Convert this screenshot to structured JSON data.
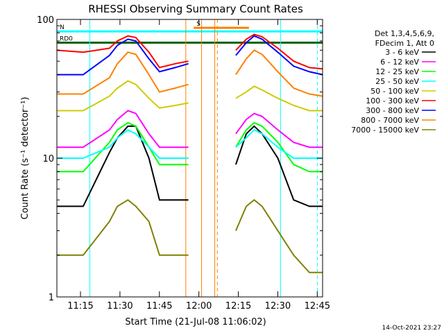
{
  "chart_data": {
    "type": "line",
    "title": "RHESSI Observing Summary Count Rates",
    "xlabel": "Start Time (21-Jul-08 11:06:02)",
    "ylabel": "Count Rate (s⁻¹ detector⁻¹)",
    "y_scale": "log",
    "ylim": [
      1,
      100
    ],
    "x_unit": "minutes since 11:06:02",
    "xlim": [
      0,
      101
    ],
    "x_ticks": [
      {
        "label": "11:15",
        "value": 8.97
      },
      {
        "label": "11:30",
        "value": 23.97
      },
      {
        "label": "11:45",
        "value": 38.97
      },
      {
        "label": "12:00",
        "value": 53.97
      },
      {
        "label": "12:15",
        "value": 68.97
      },
      {
        "label": "12:30",
        "value": 83.97
      },
      {
        "label": "12:45",
        "value": 98.97
      }
    ],
    "y_ticks": [
      {
        "label": "1",
        "value": 1
      },
      {
        "label": "10",
        "value": 10
      },
      {
        "label": "100",
        "value": 100
      }
    ],
    "legend": {
      "placement": "right",
      "header": [
        "Det 1,3,4,5,6,9,",
        "FDecim 1, Att 0"
      ]
    },
    "series": [
      {
        "name": "3 - 6 keV",
        "color": "#000000",
        "x": [
          0,
          10,
          20,
          23,
          27,
          30,
          35,
          39,
          45,
          50,
          55,
          68,
          72,
          75,
          78,
          84,
          90,
          96,
          101
        ],
        "y": [
          4.5,
          4.5,
          11,
          14,
          17,
          17,
          10,
          5,
          5,
          5,
          null,
          9,
          15,
          17,
          15,
          10,
          5,
          4.5,
          4.5
        ]
      },
      {
        "name": "6 - 12 keV",
        "color": "#ff00ff",
        "x": [
          0,
          10,
          20,
          23,
          27,
          30,
          35,
          39,
          45,
          50,
          55,
          68,
          72,
          75,
          78,
          84,
          90,
          96,
          101
        ],
        "y": [
          12,
          12,
          16,
          19,
          22,
          21,
          15,
          12,
          12,
          12,
          null,
          15,
          19,
          21,
          20,
          16,
          13,
          12,
          12
        ]
      },
      {
        "name": "12 - 25 keV",
        "color": "#00ff00",
        "x": [
          0,
          10,
          20,
          23,
          27,
          30,
          35,
          39,
          45,
          50,
          55,
          68,
          72,
          75,
          78,
          84,
          90,
          96,
          101
        ],
        "y": [
          8,
          8,
          13,
          16,
          18,
          17,
          12,
          9,
          9,
          9,
          null,
          12,
          16,
          18,
          17,
          13,
          9,
          8,
          8
        ]
      },
      {
        "name": "25 - 50 keV",
        "color": "#00ffff",
        "x": [
          0,
          10,
          20,
          23,
          27,
          30,
          35,
          39,
          45,
          50,
          55,
          68,
          72,
          75,
          78,
          84,
          90,
          96,
          101
        ],
        "y": [
          10,
          10,
          12,
          14,
          16,
          15,
          12,
          10,
          10,
          10,
          null,
          12,
          14,
          16,
          15,
          12,
          10,
          10,
          10
        ]
      },
      {
        "name": "50 - 100 keV",
        "color": "#cccc00",
        "x": [
          0,
          10,
          20,
          23,
          27,
          30,
          35,
          39,
          45,
          50,
          55,
          68,
          72,
          75,
          78,
          84,
          90,
          96,
          101
        ],
        "y": [
          22,
          22,
          28,
          32,
          36,
          34,
          27,
          23,
          24,
          25,
          null,
          27,
          30,
          33,
          31,
          27,
          24,
          22,
          22
        ]
      },
      {
        "name": "100 - 300 keV",
        "color": "#ff0000",
        "x": [
          0,
          10,
          20,
          23,
          27,
          30,
          35,
          39,
          45,
          50,
          55,
          68,
          72,
          75,
          78,
          84,
          90,
          96,
          101
        ],
        "y": [
          60,
          58,
          62,
          70,
          76,
          74,
          58,
          45,
          48,
          50,
          null,
          60,
          72,
          78,
          75,
          62,
          50,
          45,
          44
        ]
      },
      {
        "name": "300 - 800 keV",
        "color": "#0000ff",
        "x": [
          0,
          10,
          20,
          23,
          27,
          30,
          35,
          39,
          45,
          50,
          55,
          68,
          72,
          75,
          78,
          84,
          90,
          96,
          101
        ],
        "y": [
          40,
          40,
          55,
          65,
          72,
          70,
          52,
          42,
          45,
          48,
          null,
          55,
          68,
          76,
          72,
          58,
          46,
          42,
          40
        ]
      },
      {
        "name": "800 - 7000 keV",
        "color": "#ff8000",
        "x": [
          0,
          10,
          20,
          23,
          27,
          30,
          35,
          39,
          45,
          50,
          55,
          68,
          72,
          75,
          78,
          84,
          90,
          96,
          101
        ],
        "y": [
          29,
          29,
          38,
          48,
          58,
          56,
          40,
          30,
          32,
          34,
          null,
          40,
          52,
          60,
          56,
          42,
          32,
          29,
          28
        ]
      },
      {
        "name": "7000 - 15000 keV",
        "color": "#808000",
        "x": [
          0,
          10,
          20,
          23,
          27,
          30,
          35,
          39,
          45,
          50,
          55,
          68,
          72,
          75,
          78,
          84,
          90,
          96,
          101
        ],
        "y": [
          2,
          2,
          3.5,
          4.5,
          5,
          4.5,
          3.5,
          2,
          2,
          2,
          null,
          3,
          4.5,
          5,
          4.5,
          3,
          2,
          1.5,
          1.5
        ]
      }
    ],
    "flags": [
      {
        "label": "RD0",
        "color": "#006400",
        "x_start": 0,
        "x_end": 101,
        "y": 68
      },
      {
        "label": "N",
        "color": "#00ffff",
        "x_start": 0,
        "x_end": 101,
        "y": 82
      },
      {
        "label": "S",
        "color": "#ff8000",
        "x_start": 52,
        "x_end": 73,
        "y": 87
      }
    ],
    "markers": [
      {
        "color": "#00ffff",
        "style": "solid",
        "x": [
          12.5,
          85
        ]
      },
      {
        "color": "#00ffff",
        "style": "dashed",
        "x": [
          99
        ]
      },
      {
        "color": "#ff8000",
        "style": "solid",
        "x": [
          49,
          55,
          60
        ]
      },
      {
        "color": "#ff8000",
        "style": "dashed",
        "x": [
          61
        ]
      }
    ],
    "timestamp": "14-Oct-2021 23:27"
  }
}
